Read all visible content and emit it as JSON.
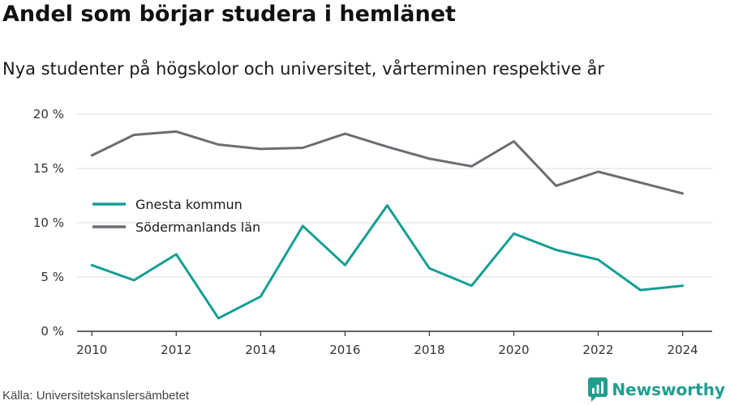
{
  "header": {
    "title": "Andel som börjar studera i hemlänet",
    "subtitle": "Nya studenter på högskolor och universitet, vårterminen respektive år"
  },
  "footer": {
    "source": "Källa: Universitetskanslersämbetet",
    "brand": "Newsworthy"
  },
  "icons": {
    "brand_logo": "newsworthy-logo-icon"
  },
  "colors": {
    "gnesta": "#149e94",
    "sodermanland": "#6e6b73",
    "brand": "#1f9e8f"
  },
  "chart_data": {
    "type": "line",
    "title": "Andel som börjar studera i hemlänet",
    "subtitle": "Nya studenter på högskolor och universitet, vårterminen respektive år",
    "xlabel": "",
    "ylabel": "",
    "x": [
      2010,
      2011,
      2012,
      2013,
      2014,
      2015,
      2016,
      2017,
      2018,
      2019,
      2020,
      2021,
      2022,
      2023,
      2024
    ],
    "xticks": [
      2010,
      2012,
      2014,
      2016,
      2018,
      2020,
      2022,
      2024
    ],
    "xlim": [
      2009.65,
      2024.7
    ],
    "ylim": [
      0,
      20
    ],
    "yticks": [
      {
        "value": 0,
        "label": "0 %"
      },
      {
        "value": 5,
        "label": "5 %"
      },
      {
        "value": 10,
        "label": "10 %"
      },
      {
        "value": 15,
        "label": "15 %"
      },
      {
        "value": 20,
        "label": "20 %"
      }
    ],
    "grid": true,
    "legend_position": "left",
    "series": [
      {
        "name": "Gnesta kommun",
        "color": "#149e94",
        "values": [
          6.1,
          4.7,
          7.1,
          1.2,
          3.2,
          9.7,
          6.1,
          11.6,
          5.8,
          4.2,
          9.0,
          7.5,
          6.6,
          3.8,
          4.2
        ]
      },
      {
        "name": "Södermanlands län",
        "color": "#6e6b73",
        "values": [
          16.2,
          18.1,
          18.4,
          17.2,
          16.8,
          16.9,
          18.2,
          17.0,
          15.9,
          15.2,
          17.5,
          13.4,
          14.7,
          13.7,
          12.7
        ]
      }
    ]
  }
}
